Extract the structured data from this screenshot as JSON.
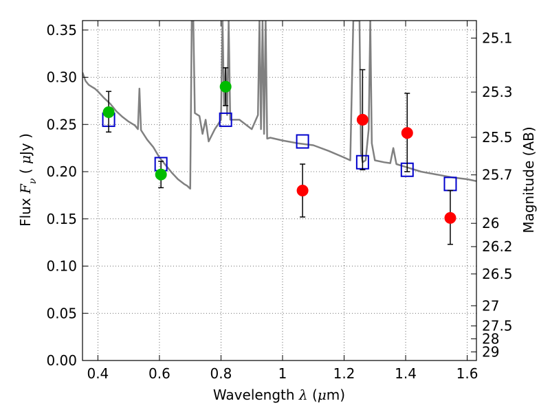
{
  "chart_data": {
    "type": "scatter",
    "xlabel": "Wavelength  λ (μm)",
    "ylabel": "Flux  Fν  ( μJy )",
    "ylabel_right": "Magnitude (AB)",
    "xlim": [
      0.35,
      1.63
    ],
    "ylim": [
      0.0,
      0.36
    ],
    "grid": true,
    "x_ticks": [
      0.4,
      0.6,
      0.8,
      1.0,
      1.2,
      1.4,
      1.6
    ],
    "x_tick_labels": [
      "0.4",
      "0.6",
      "0.8",
      "1",
      "1.2",
      "1.4",
      "1.6"
    ],
    "y_ticks": [
      0.0,
      0.05,
      0.1,
      0.15,
      0.2,
      0.25,
      0.3,
      0.35
    ],
    "y_tick_labels": [
      "0.00",
      "0.05",
      "0.10",
      "0.15",
      "0.20",
      "0.25",
      "0.30",
      "0.35"
    ],
    "right_ticks": [
      {
        "flux": 0.3415,
        "label": "25.1"
      },
      {
        "flux": 0.2843,
        "label": "25.3"
      },
      {
        "flux": 0.2364,
        "label": "25.5"
      },
      {
        "flux": 0.1966,
        "label": "25.7"
      },
      {
        "flux": 0.1453,
        "label": "26"
      },
      {
        "flux": 0.1206,
        "label": "26.2"
      },
      {
        "flux": 0.0917,
        "label": "26.5"
      },
      {
        "flux": 0.058,
        "label": "27"
      },
      {
        "flux": 0.0366,
        "label": "27.5"
      },
      {
        "flux": 0.023,
        "label": "28"
      },
      {
        "flux": 0.0091,
        "label": "29"
      }
    ],
    "colors": {
      "spectrum": "#808080",
      "model": "#0000cc",
      "optical": "#00bb00",
      "nir": "#ff0000",
      "errorbar": "#000000"
    },
    "series": [
      {
        "kind": "line",
        "points": [
          [
            0.35,
            0.305
          ],
          [
            0.36,
            0.296
          ],
          [
            0.37,
            0.292
          ],
          [
            0.38,
            0.29
          ],
          [
            0.39,
            0.288
          ],
          [
            0.4,
            0.285
          ],
          [
            0.42,
            0.278
          ],
          [
            0.44,
            0.272
          ],
          [
            0.46,
            0.264
          ],
          [
            0.48,
            0.258
          ],
          [
            0.5,
            0.253
          ],
          [
            0.52,
            0.249
          ],
          [
            0.53,
            0.245
          ],
          [
            0.535,
            0.288
          ],
          [
            0.54,
            0.244
          ],
          [
            0.56,
            0.234
          ],
          [
            0.58,
            0.226
          ],
          [
            0.6,
            0.215
          ],
          [
            0.62,
            0.207
          ],
          [
            0.64,
            0.199
          ],
          [
            0.66,
            0.192
          ],
          [
            0.68,
            0.187
          ],
          [
            0.69,
            0.185
          ],
          [
            0.7,
            0.182
          ],
          [
            0.705,
            0.36
          ],
          [
            0.71,
            0.36
          ],
          [
            0.715,
            0.262
          ],
          [
            0.73,
            0.259
          ],
          [
            0.74,
            0.24
          ],
          [
            0.75,
            0.255
          ],
          [
            0.76,
            0.232
          ],
          [
            0.78,
            0.245
          ],
          [
            0.79,
            0.25
          ],
          [
            0.8,
            0.255
          ],
          [
            0.805,
            0.36
          ],
          [
            0.81,
            0.27
          ],
          [
            0.815,
            0.31
          ],
          [
            0.82,
            0.26
          ],
          [
            0.825,
            0.36
          ],
          [
            0.83,
            0.255
          ],
          [
            0.86,
            0.255
          ],
          [
            0.9,
            0.245
          ],
          [
            0.92,
            0.26
          ],
          [
            0.925,
            0.36
          ],
          [
            0.93,
            0.245
          ],
          [
            0.935,
            0.36
          ],
          [
            0.94,
            0.24
          ],
          [
            0.945,
            0.36
          ],
          [
            0.95,
            0.235
          ],
          [
            0.96,
            0.236
          ],
          [
            1.0,
            0.233
          ],
          [
            1.05,
            0.23
          ],
          [
            1.1,
            0.228
          ],
          [
            1.15,
            0.222
          ],
          [
            1.2,
            0.215
          ],
          [
            1.22,
            0.212
          ],
          [
            1.23,
            0.36
          ],
          [
            1.24,
            0.36
          ],
          [
            1.25,
            0.36
          ],
          [
            1.255,
            0.22
          ],
          [
            1.26,
            0.21
          ],
          [
            1.27,
            0.212
          ],
          [
            1.28,
            0.245
          ],
          [
            1.285,
            0.36
          ],
          [
            1.29,
            0.23
          ],
          [
            1.3,
            0.212
          ],
          [
            1.33,
            0.21
          ],
          [
            1.35,
            0.209
          ],
          [
            1.36,
            0.225
          ],
          [
            1.37,
            0.208
          ],
          [
            1.4,
            0.205
          ],
          [
            1.45,
            0.2
          ],
          [
            1.5,
            0.197
          ],
          [
            1.55,
            0.194
          ],
          [
            1.6,
            0.192
          ],
          [
            1.63,
            0.19
          ]
        ]
      },
      {
        "kind": "model",
        "points": [
          [
            0.435,
            0.255
          ],
          [
            0.605,
            0.208
          ],
          [
            0.815,
            0.255
          ],
          [
            1.065,
            0.232
          ],
          [
            1.26,
            0.21
          ],
          [
            1.405,
            0.202
          ],
          [
            1.545,
            0.187
          ]
        ]
      },
      {
        "kind": "optical",
        "points": [
          {
            "x": 0.435,
            "y": 0.263,
            "lo": 0.242,
            "hi": 0.285
          },
          {
            "x": 0.605,
            "y": 0.197,
            "lo": 0.183,
            "hi": 0.211
          },
          {
            "x": 0.815,
            "y": 0.29,
            "lo": 0.27,
            "hi": 0.31
          }
        ]
      },
      {
        "kind": "nir",
        "points": [
          {
            "x": 1.065,
            "y": 0.18,
            "lo": 0.152,
            "hi": 0.208
          },
          {
            "x": 1.26,
            "y": 0.255,
            "lo": 0.202,
            "hi": 0.308
          },
          {
            "x": 1.405,
            "y": 0.241,
            "lo": 0.2,
            "hi": 0.283
          },
          {
            "x": 1.545,
            "y": 0.151,
            "lo": 0.123,
            "hi": 0.18
          }
        ]
      }
    ]
  }
}
